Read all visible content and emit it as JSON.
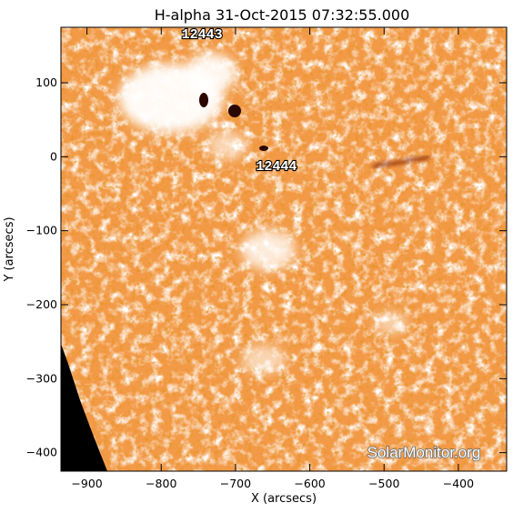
{
  "title": "H-alpha 31-Oct-2015 07:32:55.000",
  "axes": {
    "xlabel": "X (arcsecs)",
    "ylabel": "Y (arcsecs)",
    "xrange": [
      -935,
      -335
    ],
    "yrange": [
      -425,
      175
    ],
    "xticks": [
      -900,
      -800,
      -700,
      -600,
      -500,
      -400
    ],
    "yticks": [
      100,
      0,
      -100,
      -200,
      -300,
      -400
    ]
  },
  "regions": [
    {
      "label": "12443",
      "x": -745,
      "y": 160
    },
    {
      "label": "12444",
      "x": -645,
      "y": -18
    }
  ],
  "watermark": "SolarMonitor.org",
  "colors": {
    "chromosphere": "#f39a48",
    "plage": "#ffffff",
    "sunspot": "#2a0800",
    "space": "#000000",
    "frame": "#000000"
  }
}
